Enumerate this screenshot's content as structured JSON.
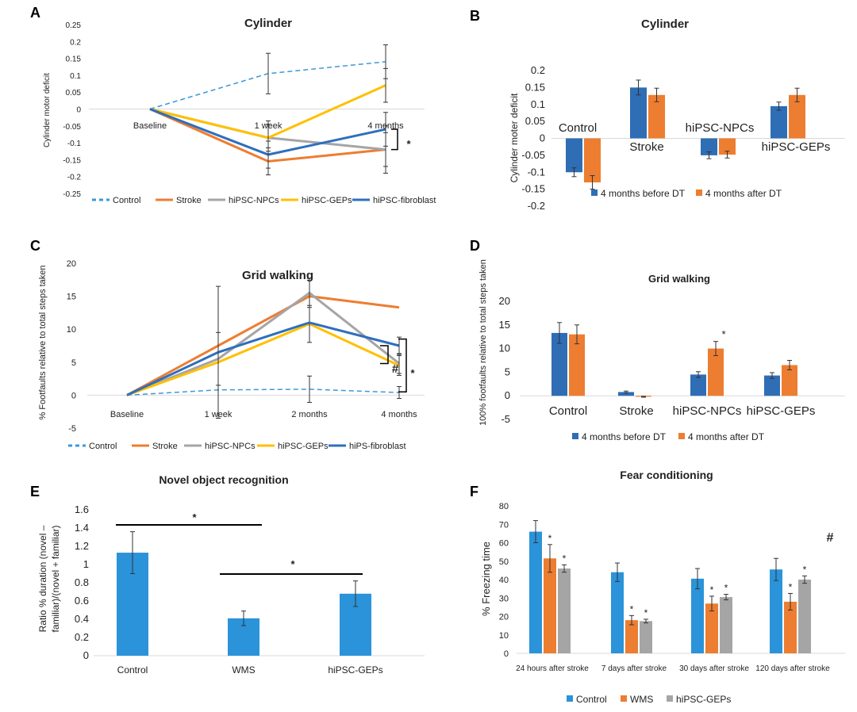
{
  "colors": {
    "control": "#3a9ad9",
    "stroke": "#ed7d31",
    "npcs": "#a5a5a5",
    "geps": "#ffc000",
    "fibro": "#2e6fbd",
    "before": "#2f6db5",
    "after": "#ed7d31",
    "blue": "#2b93d9",
    "gray": "#a5a5a5",
    "axis": "#d9d9d9",
    "sig": "#000000"
  },
  "panels": {
    "A": "A",
    "B": "B",
    "C": "C",
    "D": "D",
    "E": "E",
    "F": "F"
  },
  "chart_data": [
    {
      "id": "A",
      "type": "line",
      "title": "Cylinder",
      "ylabel": "Cylinder motor deficit",
      "xlabel": "",
      "ylim": [
        -0.25,
        0.25
      ],
      "yticks": [
        "0.25",
        "0.2",
        "0.15",
        "0.1",
        "0.05",
        "0",
        "-0.05",
        "-0.1",
        "-0.15",
        "-0.2",
        "-0.25"
      ],
      "categories": [
        "Baseline",
        "1 week",
        "4 months"
      ],
      "series": [
        {
          "name": "Control",
          "style": "dashed",
          "values": [
            0,
            0.105,
            0.14
          ],
          "err": [
            0,
            0.06,
            0.05
          ]
        },
        {
          "name": "Stroke",
          "values": [
            0,
            -0.155,
            -0.12
          ],
          "err": [
            0,
            0.04,
            0.07
          ]
        },
        {
          "name": "hiPSC-NPCs",
          "values": [
            0,
            -0.085,
            -0.12
          ],
          "err": [
            0,
            0.05,
            0.05
          ]
        },
        {
          "name": "hiPSC-GEPs",
          "values": [
            0,
            -0.085,
            0.07
          ],
          "err": [
            0,
            0.04,
            0.05
          ]
        },
        {
          "name": "hiPSC-fibroblast",
          "values": [
            0,
            -0.135,
            -0.06
          ],
          "err": [
            0,
            0.04,
            0.05
          ]
        }
      ],
      "annotation": "*"
    },
    {
      "id": "B",
      "type": "bar",
      "title": "Cylinder",
      "ylabel": "Cylinder moter deficit",
      "ylim": [
        -0.2,
        0.2
      ],
      "yticks": [
        "0.2",
        "0.15",
        "0.1",
        "0.05",
        "0",
        "-0.05",
        "-0.1",
        "-0.15",
        "-0.2"
      ],
      "categories": [
        "Control",
        "Stroke",
        "hiPSC-NPCs",
        "hiPSC-GEPs"
      ],
      "series": [
        {
          "name": "4 months before DT",
          "values": [
            -0.1,
            0.15,
            -0.05,
            0.095
          ],
          "err": [
            0.013,
            0.022,
            0.01,
            0.012
          ]
        },
        {
          "name": "4 months after DT",
          "values": [
            -0.13,
            0.128,
            -0.048,
            0.128
          ],
          "err": [
            0.02,
            0.02,
            0.01,
            0.02
          ]
        }
      ]
    },
    {
      "id": "C",
      "type": "line",
      "title": "Grid walking",
      "ylabel": "% Footfaults relative to total steps taken",
      "ylim": [
        -5,
        20
      ],
      "yticks": [
        "20",
        "15",
        "10",
        "5",
        "0",
        "-5"
      ],
      "categories": [
        "Baseline",
        "1 week",
        "2 months",
        "4 months"
      ],
      "series": [
        {
          "name": "Control",
          "style": "dashed",
          "values": [
            0,
            0.8,
            0.9,
            0.4
          ],
          "err": [
            0,
            0,
            2.0,
            0.9
          ]
        },
        {
          "name": "Stroke",
          "values": [
            0,
            7.5,
            15.0,
            13.3
          ],
          "err": [
            0,
            0,
            0,
            0
          ]
        },
        {
          "name": "hiPSC-NPCs",
          "values": [
            0,
            5.5,
            15.5,
            4.8
          ],
          "err": [
            0,
            4.0,
            2.2,
            1.5
          ]
        },
        {
          "name": "hiPSC-GEPs",
          "values": [
            0,
            5.0,
            10.8,
            4.5
          ],
          "err": [
            0,
            0,
            2.8,
            1.5
          ]
        },
        {
          "name": "hiPS-fibroblast",
          "values": [
            0,
            6.5,
            11.0,
            7.5
          ],
          "err": [
            0,
            10.0,
            0,
            1.3
          ]
        }
      ],
      "annotations": [
        "#",
        "*"
      ]
    },
    {
      "id": "D",
      "type": "bar",
      "title": "Grid walking",
      "ylabel": "100% footfaults relative to total steps taken",
      "ylim": [
        -5,
        20
      ],
      "yticks": [
        "20",
        "15",
        "10",
        "5",
        "0",
        "-5"
      ],
      "categories": [
        "Control",
        "Stroke",
        "hiPSC-NPCs",
        "hiPSC-GEPs"
      ],
      "series": [
        {
          "name": "4 months before DT",
          "values": [
            13.3,
            0.8,
            4.5,
            4.3
          ],
          "err": [
            2.2,
            0.2,
            0.6,
            0.6
          ]
        },
        {
          "name": "4 months after DT",
          "values": [
            13.0,
            -0.2,
            10.0,
            6.5
          ],
          "err": [
            2.0,
            0.1,
            1.5,
            1.0
          ]
        }
      ],
      "annotation": "*"
    },
    {
      "id": "E",
      "type": "bar",
      "title": "Novel object recognition",
      "ylabel": "Ratio % duration (novel – familiar)/(novel + familiar)",
      "ylim": [
        0,
        1.6
      ],
      "yticks": [
        "1.6",
        "1.4",
        "1.2",
        "1",
        "0.8",
        "0.6",
        "0.4",
        "0.2",
        "0"
      ],
      "categories": [
        "Control",
        "WMS",
        "hiPSC-GEPs"
      ],
      "values": [
        1.13,
        0.41,
        0.68
      ],
      "err": [
        0.23,
        0.08,
        0.14
      ],
      "annotations": [
        "*",
        "*"
      ]
    },
    {
      "id": "F",
      "type": "bar",
      "title": "Fear conditioning",
      "ylabel": "% Freezing time",
      "ylim": [
        0,
        80
      ],
      "yticks": [
        "80",
        "70",
        "60",
        "50",
        "40",
        "30",
        "20",
        "10",
        "0"
      ],
      "categories": [
        "24 hours after stroke",
        "7 days after stroke",
        "30 days after stroke",
        "120 days after stroke"
      ],
      "series": [
        {
          "name": "Control",
          "values": [
            66,
            44,
            40.5,
            45.5
          ],
          "err": [
            6,
            5,
            5.5,
            6
          ]
        },
        {
          "name": "WMS",
          "values": [
            51.5,
            18,
            27,
            28
          ],
          "err": [
            7.5,
            2.5,
            4,
            4.5
          ]
        },
        {
          "name": "hiPSC-GEPs",
          "values": [
            46,
            17.5,
            30.5,
            40
          ],
          "err": [
            2,
            1,
            1.5,
            2
          ]
        }
      ],
      "annotations": [
        "*",
        "#"
      ]
    }
  ]
}
